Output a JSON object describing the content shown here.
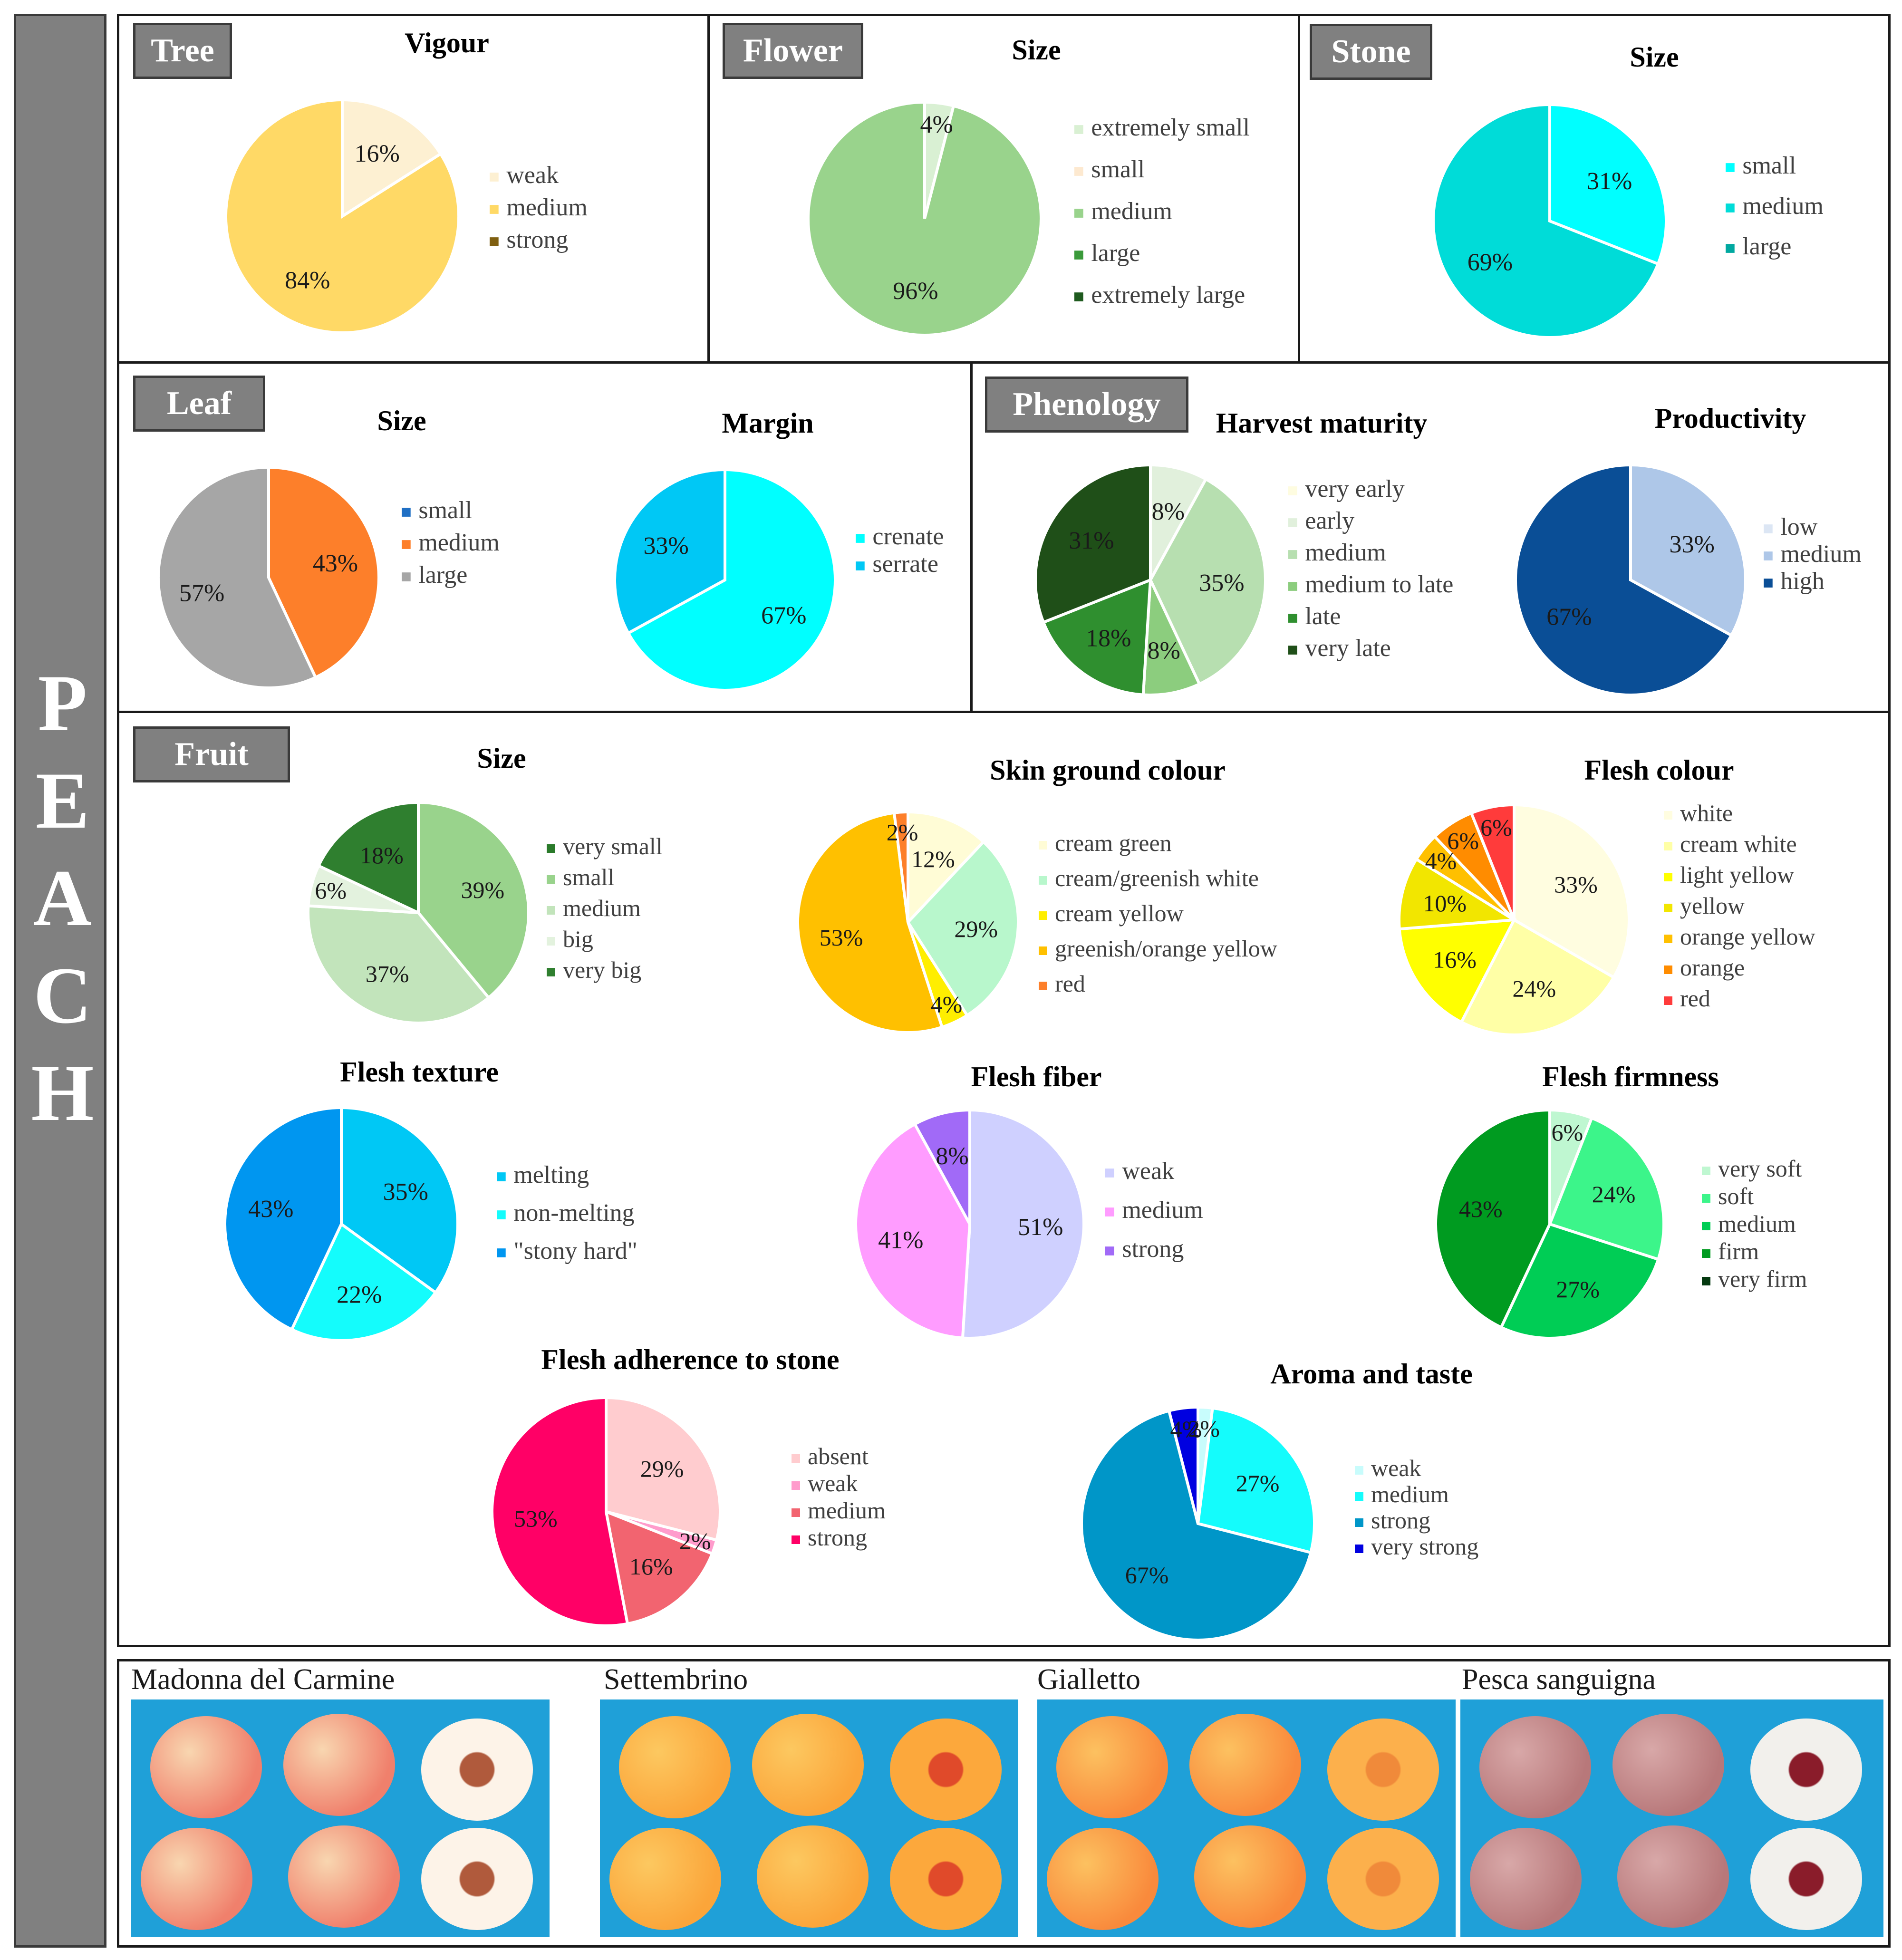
{
  "side_label": [
    "P",
    "E",
    "A",
    "C",
    "H"
  ],
  "sections": {
    "tree": "Tree",
    "flower": "Flower",
    "stone": "Stone",
    "leaf": "Leaf",
    "phenology": "Phenology",
    "fruit": "Fruit"
  },
  "chart_data": [
    {
      "id": "tree-vigour",
      "type": "pie",
      "title": "Vigour",
      "labels": [
        "weak",
        "medium",
        "strong"
      ],
      "values": [
        16,
        84,
        0
      ],
      "data_labels": [
        "16%",
        "84%",
        ""
      ],
      "colors": [
        "#fdf0d2",
        "#ffd966",
        "#7f5f10"
      ],
      "legend_position": "right"
    },
    {
      "id": "flower-size",
      "type": "pie",
      "title": "Size",
      "labels": [
        "extremely small",
        "small",
        "medium",
        "large",
        "extremely large"
      ],
      "values": [
        4,
        0,
        96,
        0,
        0
      ],
      "data_labels": [
        "4%",
        "",
        "96%",
        "",
        ""
      ],
      "colors": [
        "#d9f0d3",
        "#fde9d0",
        "#99d38c",
        "#3a9a3a",
        "#1e5a1e"
      ],
      "legend_position": "right"
    },
    {
      "id": "stone-size",
      "type": "pie",
      "title": "Size",
      "labels": [
        "small",
        "medium",
        "large"
      ],
      "values": [
        31,
        69,
        0
      ],
      "data_labels": [
        "31%",
        "69%",
        ""
      ],
      "colors": [
        "#00ffff",
        "#00dcd8",
        "#00a8a0"
      ],
      "legend_position": "right"
    },
    {
      "id": "leaf-size",
      "type": "pie",
      "title": "Size",
      "labels": [
        "small",
        "medium",
        "large"
      ],
      "values": [
        0,
        43,
        57
      ],
      "data_labels": [
        "",
        "43%",
        "57%"
      ],
      "colors": [
        "#1f6fc4",
        "#fd7f2a",
        "#a6a6a6"
      ],
      "legend_position": "right"
    },
    {
      "id": "leaf-margin",
      "type": "pie",
      "title": "Margin",
      "labels": [
        "crenate",
        "serrate"
      ],
      "values": [
        67,
        33
      ],
      "data_labels": [
        "67%",
        "33%"
      ],
      "colors": [
        "#00ffff",
        "#00c8f5"
      ],
      "legend_position": "right"
    },
    {
      "id": "phenology-harvest",
      "type": "pie",
      "title": "Harvest maturity",
      "labels": [
        "very early",
        "early",
        "medium",
        "medium to late",
        "late",
        "very late"
      ],
      "values": [
        0,
        8,
        35,
        8,
        18,
        31
      ],
      "data_labels": [
        "",
        "8%",
        "35%",
        "8%",
        "18%",
        "31%"
      ],
      "colors": [
        "#fefce0",
        "#e1f0dc",
        "#b7dfb0",
        "#8ccd7e",
        "#2f8f2f",
        "#1f4f18"
      ],
      "legend_position": "right"
    },
    {
      "id": "phenology-productivity",
      "type": "pie",
      "title": "Productivity",
      "labels": [
        "low",
        "medium",
        "high"
      ],
      "values": [
        0,
        33,
        67
      ],
      "data_labels": [
        "",
        "33%",
        "67%"
      ],
      "colors": [
        "#dce6f4",
        "#aec7e8",
        "#0a4e96"
      ],
      "legend_position": "right"
    },
    {
      "id": "fruit-size",
      "type": "pie",
      "title": "Size",
      "labels": [
        "very small",
        "small",
        "medium",
        "big",
        "very big"
      ],
      "values": [
        0,
        39,
        37,
        6,
        18
      ],
      "data_labels": [
        "",
        "39%",
        "37%",
        "6%",
        "18%"
      ],
      "colors": [
        "#2a7a2a",
        "#99d38c",
        "#c2e4bb",
        "#e3f2de",
        "#2f7f2f"
      ],
      "legend_position": "right"
    },
    {
      "id": "fruit-skin-ground-colour",
      "type": "pie",
      "title": "Skin ground colour",
      "labels": [
        "cream green",
        "cream/greenish white",
        "cream yellow",
        "greenish/orange yellow",
        "red"
      ],
      "values": [
        12,
        29,
        4,
        53,
        2
      ],
      "data_labels": [
        "12%",
        "29%",
        "4%",
        "53%",
        "2%"
      ],
      "colors": [
        "#fffcd6",
        "#b8f7cc",
        "#ffee00",
        "#ffc000",
        "#fd7f2a"
      ],
      "legend_position": "right"
    },
    {
      "id": "fruit-flesh-colour",
      "type": "pie",
      "title": "Flesh colour",
      "labels": [
        "white",
        "cream white",
        "light yellow",
        "yellow",
        "orange yellow",
        "orange",
        "red"
      ],
      "values": [
        33,
        24,
        16,
        10,
        4,
        6,
        6
      ],
      "data_labels": [
        "33%",
        "24%",
        "16%",
        "10%",
        "4%",
        "6%",
        "6%"
      ],
      "colors": [
        "#fffde0",
        "#ffffa6",
        "#ffff00",
        "#f2e600",
        "#ffc000",
        "#ff8c00",
        "#ff3b3b"
      ],
      "legend_position": "right"
    },
    {
      "id": "fruit-flesh-texture",
      "type": "pie",
      "title": "Flesh texture",
      "labels": [
        "melting",
        "non-melting",
        "\"stony hard\""
      ],
      "values": [
        35,
        22,
        43
      ],
      "data_labels": [
        "35%",
        "22%",
        "43%"
      ],
      "colors": [
        "#00c8f5",
        "#14fcfc",
        "#0096f0"
      ],
      "legend_position": "right"
    },
    {
      "id": "fruit-flesh-fiber",
      "type": "pie",
      "title": "Flesh fiber",
      "labels": [
        "weak",
        "medium",
        "strong"
      ],
      "values": [
        51,
        41,
        8
      ],
      "data_labels": [
        "51%",
        "41%",
        "8%"
      ],
      "colors": [
        "#cfd0ff",
        "#ff9cff",
        "#a16af7"
      ],
      "legend_position": "right"
    },
    {
      "id": "fruit-flesh-firmness",
      "type": "pie",
      "title": "Flesh firmness",
      "labels": [
        "very soft",
        "soft",
        "medium",
        "firm",
        "very firm"
      ],
      "values": [
        6,
        24,
        27,
        43,
        0
      ],
      "data_labels": [
        "6%",
        "24%",
        "27%",
        "43%",
        ""
      ],
      "colors": [
        "#bff7d1",
        "#3cf58a",
        "#00cd55",
        "#009b20",
        "#053a10"
      ],
      "legend_position": "right"
    },
    {
      "id": "fruit-flesh-adherence",
      "type": "pie",
      "title": "Flesh adherence to stone",
      "labels": [
        "absent",
        "weak",
        "medium",
        "strong"
      ],
      "values": [
        29,
        2,
        16,
        53
      ],
      "data_labels": [
        "29%",
        "2%",
        "16%",
        "53%"
      ],
      "colors": [
        "#ffcccf",
        "#ff9ccc",
        "#f26470",
        "#ff0066"
      ],
      "legend_position": "right"
    },
    {
      "id": "fruit-aroma-taste",
      "type": "pie",
      "title": "Aroma and taste",
      "labels": [
        "weak",
        "medium",
        "strong",
        "very strong"
      ],
      "values": [
        2,
        27,
        67,
        4
      ],
      "data_labels": [
        "2%",
        "27%",
        "67%",
        "4%"
      ],
      "colors": [
        "#c8fcfc",
        "#14fcfc",
        "#0096c8",
        "#0000e0"
      ],
      "legend_position": "right"
    }
  ],
  "photos": [
    {
      "name": "Madonna del Carmine",
      "skin": "#f0806c",
      "skin2": "#f8d6b0",
      "flesh": "#fdf3e8",
      "pit": "#b05a3c"
    },
    {
      "name": "Settembrino",
      "skin": "#fba53a",
      "skin2": "#fcc860",
      "flesh": "#fca83c",
      "pit": "#e04a2a"
    },
    {
      "name": "Gialletto",
      "skin": "#f98a3c",
      "skin2": "#fcc160",
      "flesh": "#fcb04c",
      "pit": "#f08a3a"
    },
    {
      "name": "Pesca sanguigna",
      "skin": "#b8787a",
      "skin2": "#d8a8a8",
      "flesh": "#f2f0ec",
      "pit": "#8a1c2a"
    }
  ]
}
